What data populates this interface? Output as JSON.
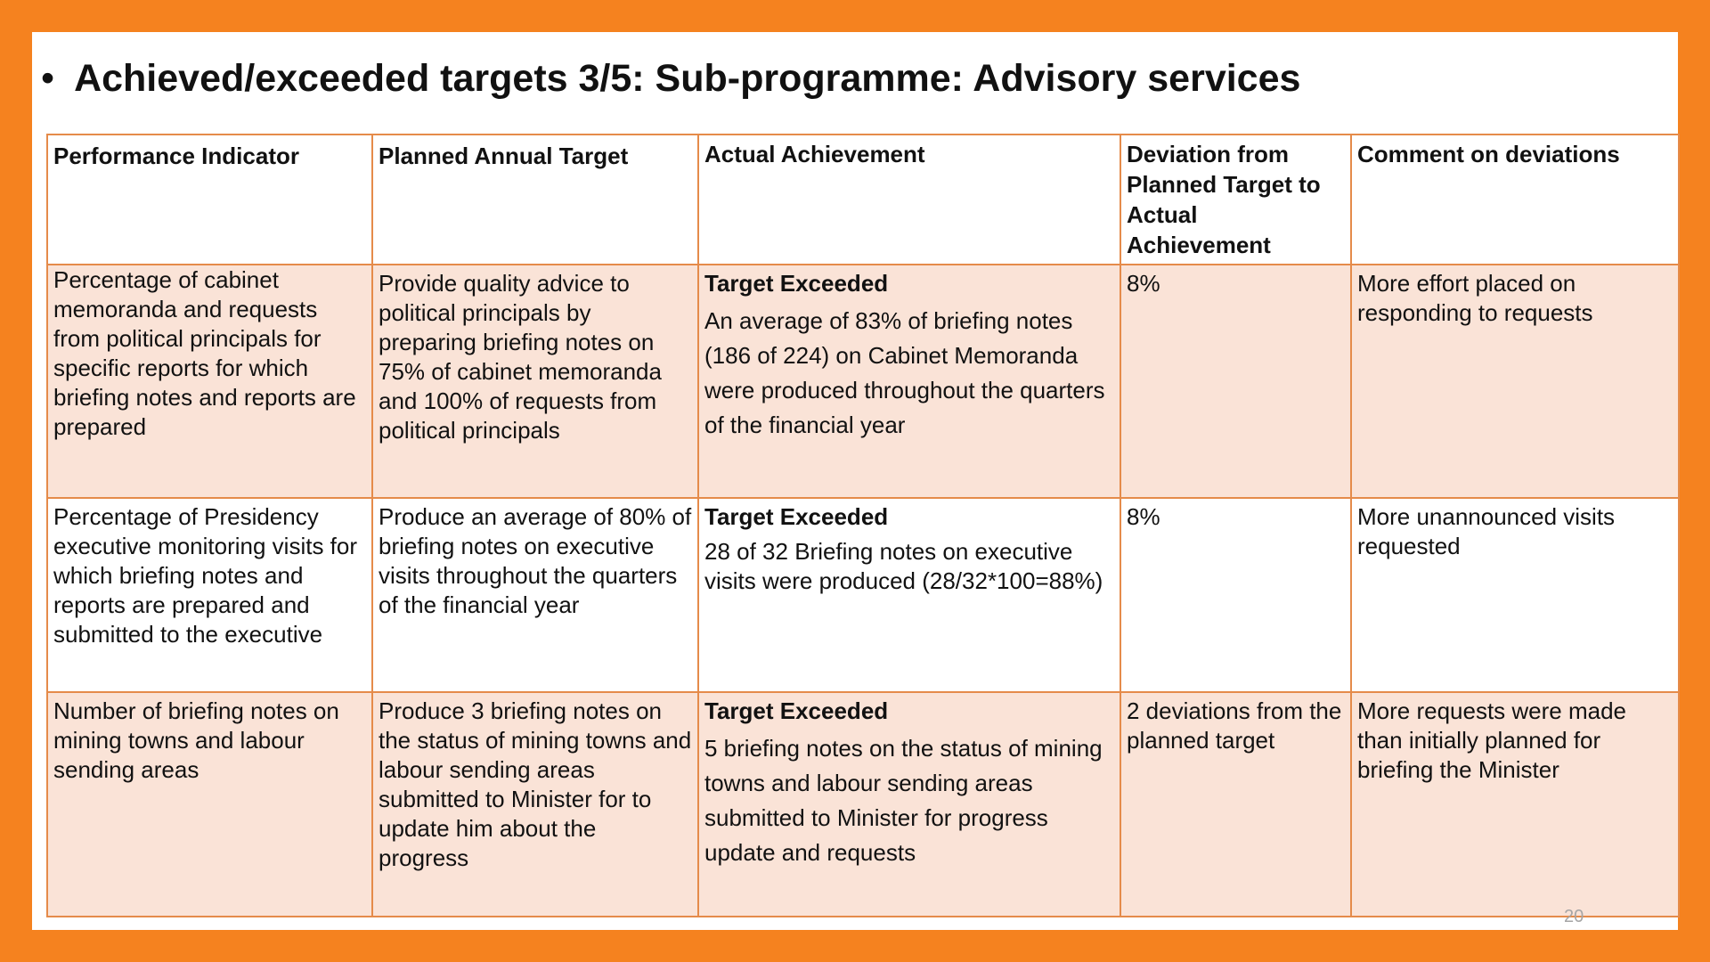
{
  "slide": {
    "bullet": "•",
    "title": "Achieved/exceeded targets 3/5:  Sub-programme:  Advisory  services",
    "page_number": "20"
  },
  "table": {
    "headers": [
      "Performance Indicator",
      "Planned Annual Target",
      "Actual Achievement",
      "Deviation from Planned Target to Actual Achievement",
      "Comment on deviations"
    ],
    "rows": [
      {
        "indicator": "Percentage of cabinet memoranda and requests from political principals for specific reports for which briefing notes and reports are prepared",
        "planned": "Provide quality advice to political principals by preparing briefing notes on 75% of cabinet memoranda and 100% of requests from political principals",
        "status": "Target Exceeded",
        "achievement": "An average of 83% of briefing notes (186 of 224) on Cabinet Memoranda were produced throughout the quarters of the financial year",
        "deviation": "8%",
        "comment": "More effort placed on responding to requests"
      },
      {
        "indicator": "Percentage of Presidency executive monitoring visits for which  briefing notes and reports are prepared and submitted to the executive",
        "planned": "Produce an average of 80% of briefing notes on executive visits throughout the quarters of the financial year",
        "status": "Target Exceeded",
        "achievement": "28 of 32 Briefing notes on executive visits were produced (28/32*100=88%)",
        "deviation": "8%",
        "comment": "More unannounced visits requested"
      },
      {
        "indicator": "Number of briefing notes on mining towns and labour sending areas",
        "planned": "Produce 3 briefing notes  on the status of  mining towns and labour sending areas submitted to Minister for to update him about the progress",
        "status": "Target Exceeded",
        "achievement": "5 briefing notes  on the status of mining towns and labour sending areas submitted to Minister for progress update and requests",
        "deviation": "2 deviations from the planned target",
        "comment": "More requests were made than initially planned for briefing the Minister"
      }
    ]
  },
  "colors": {
    "frame": "#F5821F",
    "table_border": "#E58B4A",
    "row_fill": "#FAE3D7"
  }
}
